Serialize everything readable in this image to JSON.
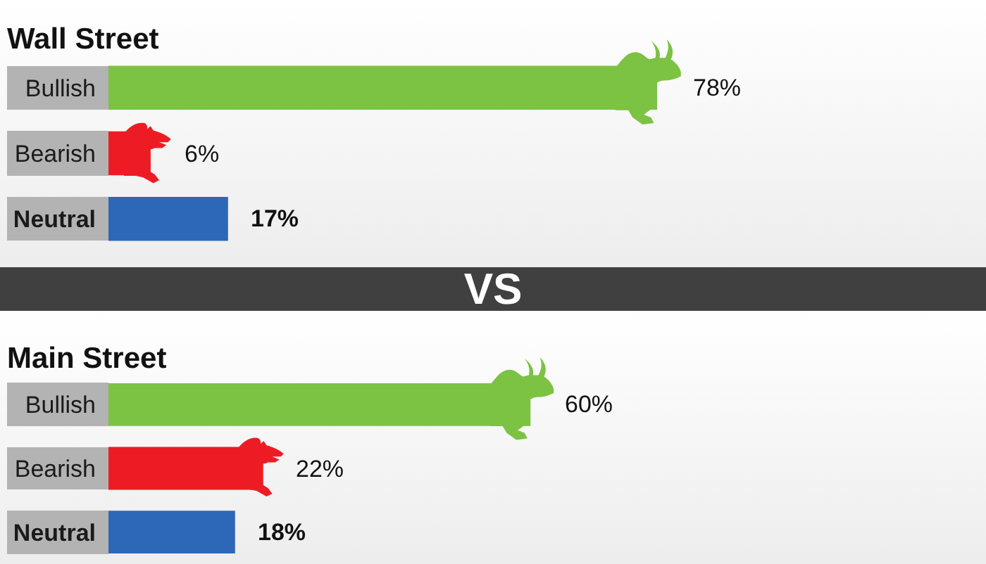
{
  "chart_data": [
    {
      "type": "bar",
      "orientation": "horizontal",
      "title": "Wall Street",
      "categories": [
        "Bullish",
        "Bearish",
        "Neutral"
      ],
      "values": [
        78,
        6,
        17
      ],
      "colors": [
        "#7cc243",
        "#ed1c24",
        "#2d67b8"
      ],
      "value_labels": [
        "78%",
        "6%",
        "17%"
      ],
      "tick_labels": "y",
      "annotations": [
        "VS"
      ]
    },
    {
      "type": "bar",
      "orientation": "horizontal",
      "title": "Main Street",
      "categories": [
        "Bullish",
        "Bearish",
        "Neutral"
      ],
      "values": [
        60,
        22,
        18
      ],
      "colors": [
        "#7cc243",
        "#ed1c24",
        "#2d67b8"
      ],
      "value_labels": [
        "60%",
        "22%",
        "18%"
      ],
      "tick_labels": "y"
    }
  ]
}
